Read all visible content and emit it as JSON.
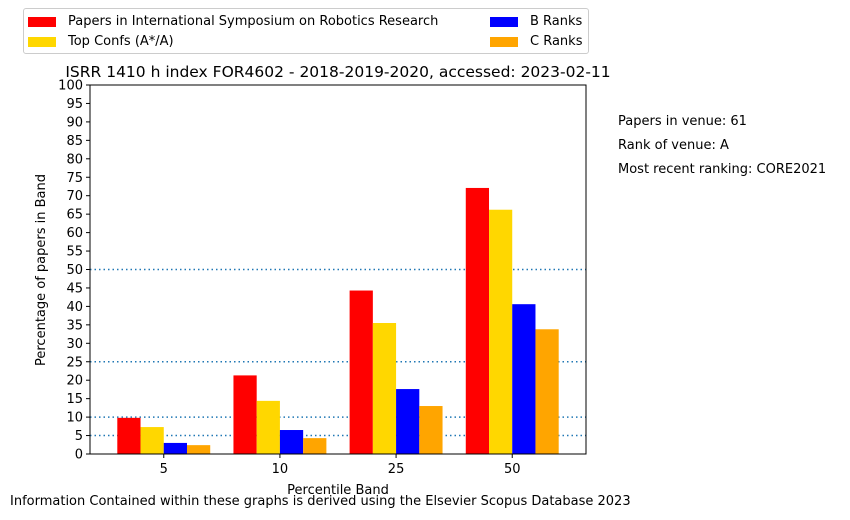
{
  "chart_data": {
    "type": "bar",
    "title": "ISRR 1410 h index FOR4602 - 2018-2019-2020, accessed: 2023-02-11",
    "xlabel": "Percentile Band",
    "ylabel": "Percentage of papers in Band",
    "categories": [
      "5",
      "10",
      "25",
      "50"
    ],
    "ylim": [
      0,
      100
    ],
    "yticks": [
      0,
      5,
      10,
      15,
      20,
      25,
      30,
      35,
      40,
      45,
      50,
      55,
      60,
      65,
      70,
      75,
      80,
      85,
      90,
      95,
      100
    ],
    "reference_lines": [
      5,
      10,
      25,
      50
    ],
    "reference_line_color": "#1f77b4",
    "legend_position": "top",
    "series": [
      {
        "name": "Papers in International Symposium on Robotics Research",
        "color": "#ff0000",
        "values": [
          9.8,
          21.3,
          44.3,
          72.1
        ]
      },
      {
        "name": "Top Confs (A*/A)",
        "color": "#ffd700",
        "values": [
          7.3,
          14.4,
          35.5,
          66.2
        ]
      },
      {
        "name": "B Ranks",
        "color": "#0000ff",
        "values": [
          3.0,
          6.5,
          17.6,
          40.6
        ]
      },
      {
        "name": "C Ranks",
        "color": "#ffa500",
        "values": [
          2.4,
          4.3,
          13.0,
          33.8
        ]
      }
    ]
  },
  "annotations": {
    "papers_in_venue": "Papers in venue: 61",
    "rank_of_venue": "Rank of venue: A",
    "most_recent_ranking": "Most recent ranking: CORE2021"
  },
  "footer": "Information Contained within these graphs is derived using the Elsevier Scopus Database 2023"
}
